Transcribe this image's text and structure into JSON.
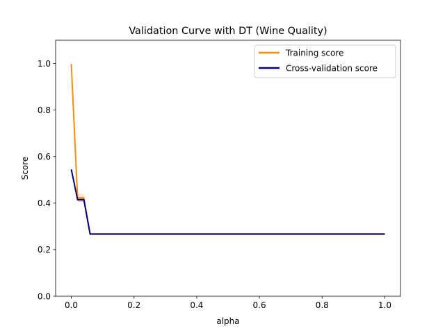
{
  "chart_data": {
    "type": "line",
    "title": "Validation Curve with DT (Wine Quality)",
    "xlabel": "alpha",
    "ylabel": "Score",
    "xlim": [
      -0.05,
      1.05
    ],
    "ylim": [
      0.0,
      1.1
    ],
    "xticks": [
      0.0,
      0.2,
      0.4,
      0.6,
      0.8,
      1.0
    ],
    "xtick_labels": [
      "0.0",
      "0.2",
      "0.4",
      "0.6",
      "0.8",
      "1.0"
    ],
    "yticks": [
      0.0,
      0.2,
      0.4,
      0.6,
      0.8,
      1.0
    ],
    "ytick_labels": [
      "0.0",
      "0.2",
      "0.4",
      "0.6",
      "0.8",
      "1.0"
    ],
    "grid": false,
    "legend_position": "top-right",
    "series": [
      {
        "name": "Training score",
        "color": "#ff8c00",
        "x": [
          0.0,
          0.02,
          0.04,
          0.06,
          0.08,
          0.1,
          0.2,
          0.3,
          0.4,
          0.5,
          0.6,
          0.7,
          0.8,
          0.9,
          1.0
        ],
        "y": [
          0.998,
          0.423,
          0.423,
          0.267,
          0.267,
          0.267,
          0.267,
          0.267,
          0.267,
          0.267,
          0.267,
          0.267,
          0.267,
          0.267,
          0.267
        ],
        "band_lower": [
          0.996,
          0.405,
          0.405,
          0.262,
          0.262,
          0.262,
          0.262,
          0.262,
          0.262,
          0.262,
          0.262,
          0.262,
          0.262,
          0.262,
          0.262
        ],
        "band_upper": [
          1.0,
          0.44,
          0.44,
          0.272,
          0.272,
          0.272,
          0.272,
          0.272,
          0.272,
          0.272,
          0.272,
          0.272,
          0.272,
          0.272,
          0.272
        ]
      },
      {
        "name": "Cross-validation score",
        "color": "#000080",
        "x": [
          0.0,
          0.02,
          0.04,
          0.06,
          0.08,
          0.1,
          0.2,
          0.3,
          0.4,
          0.5,
          0.6,
          0.7,
          0.8,
          0.9,
          1.0
        ],
        "y": [
          0.545,
          0.415,
          0.415,
          0.267,
          0.267,
          0.267,
          0.267,
          0.267,
          0.267,
          0.267,
          0.267,
          0.267,
          0.267,
          0.267,
          0.267
        ],
        "band_lower": [
          0.54,
          0.407,
          0.407,
          0.265,
          0.265,
          0.265,
          0.265,
          0.265,
          0.265,
          0.265,
          0.265,
          0.265,
          0.265,
          0.265,
          0.265
        ],
        "band_upper": [
          0.55,
          0.423,
          0.423,
          0.269,
          0.269,
          0.269,
          0.269,
          0.269,
          0.269,
          0.269,
          0.269,
          0.269,
          0.269,
          0.269,
          0.269
        ]
      }
    ]
  }
}
